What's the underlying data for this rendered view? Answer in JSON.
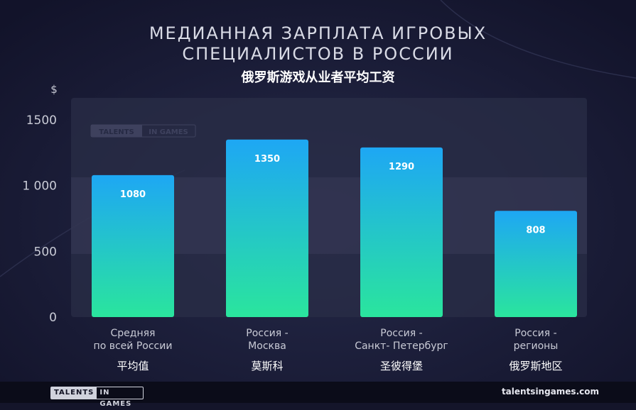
{
  "title_line1": "МЕДИАННАЯ ЗАРПЛАТА ИГРОВЫХ",
  "title_line2": "СПЕЦИАЛИСТОВ В РОССИИ",
  "title_cn": "俄罗斯游戏从业者平均工资",
  "watermark_logo": {
    "part1": "TALENTS",
    "part2": "IN GAMES"
  },
  "footer": {
    "logo_part1": "TALENTS",
    "logo_part2": "IN GAMES",
    "website": "talentsingames.com"
  },
  "colors": {
    "background": "#14152a",
    "bar_top": "#1ea7f4",
    "bar_bottom": "#2ae59d",
    "text_muted": "#c9cbd6"
  },
  "chart_data": {
    "type": "bar",
    "ylabel": "$",
    "ylim": [
      0,
      1500
    ],
    "yticks": [
      {
        "value": 0,
        "label": "0"
      },
      {
        "value": 500,
        "label": "500"
      },
      {
        "value": 1000,
        "label": "1 000"
      },
      {
        "value": 1500,
        "label": "1500"
      }
    ],
    "categories": [
      {
        "line1": "Средняя",
        "line2": "по всей России",
        "cn": "平均值"
      },
      {
        "line1": "Россия -",
        "line2": "Москва",
        "cn": "莫斯科"
      },
      {
        "line1": "Россия -",
        "line2": "Санкт- Петербург",
        "cn": "圣彼得堡"
      },
      {
        "line1": "Россия -",
        "line2": "регионы",
        "cn": "俄罗斯地区"
      }
    ],
    "values": [
      1080,
      1350,
      1290,
      808
    ],
    "value_labels": [
      "1080",
      "1350",
      "1290",
      "808"
    ]
  }
}
